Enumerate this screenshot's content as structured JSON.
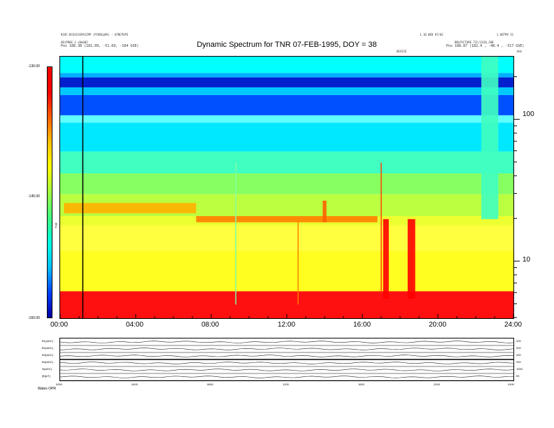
{
  "title": "Dynamic Spectrum for TNR 07-FEB-1995, DOY = 38",
  "header": {
    "left_line1": "B1DC-BCGSCGSPACCMP (PCKBC@PA) - 07NCPSPS",
    "left_line2": "AB|PR8E.3 sBe002",
    "left_line3": "Pos   188.38 (181.89, -51.69, -184 GSE)",
    "right_line1": "1.10 WED 07/02",
    "right_line2": "1.06TMV 31",
    "right_line3": "BBLPICTURE TIC/2X20,J0B",
    "right_line4": "Pos   188.87 (182.4 , -48.4 , -317 GSE)",
    "center_small": "DEVICE",
    "freq_unit": "kHz"
  },
  "chart_data": {
    "type": "heatmap",
    "title": "Dynamic Spectrum for TNR 07-FEB-1995, DOY = 38",
    "x_ticks": [
      "00:00",
      "04:00",
      "08:00",
      "12:00",
      "16:00",
      "20:00",
      "24:00"
    ],
    "x_range": [
      0,
      24
    ],
    "y_scale": "log",
    "y_ticks": [
      "100",
      "10"
    ],
    "y_range": [
      4,
      280
    ],
    "colorbar": {
      "ticks": [
        "-130.00",
        "-145.00",
        "-160.00"
      ],
      "range": [
        -160,
        -130
      ],
      "label": "TNR",
      "colors": [
        "#0000a0",
        "#0040ff",
        "#00c0ff",
        "#00ffe0",
        "#40ff80",
        "#a0ff40",
        "#ffff00",
        "#ffc000",
        "#ff6000",
        "#ff0000",
        "#ff0000"
      ]
    },
    "bands": [
      {
        "from": 4,
        "to": 6.2,
        "color": "#ff1010"
      },
      {
        "from": 6.2,
        "to": 12,
        "color": "#fffe20"
      },
      {
        "from": 12,
        "to": 18,
        "color": "#ffff40"
      },
      {
        "from": 18,
        "to": 21,
        "color": "#ecff30"
      },
      {
        "from": 21,
        "to": 30,
        "color": "#bcff40"
      },
      {
        "from": 30,
        "to": 42,
        "color": "#88ff60"
      },
      {
        "from": 42,
        "to": 60,
        "color": "#40ffc0"
      },
      {
        "from": 60,
        "to": 96,
        "color": "#00e8ff"
      },
      {
        "from": 96,
        "to": 108,
        "color": "#60ffff"
      },
      {
        "from": 108,
        "to": 150,
        "color": "#0050ff"
      },
      {
        "from": 150,
        "to": 170,
        "color": "#00c8ff"
      },
      {
        "from": 170,
        "to": 200,
        "color": "#0020d0"
      },
      {
        "from": 200,
        "to": 215,
        "color": "#00b0ff"
      },
      {
        "from": 215,
        "to": 280,
        "color": "#00ffff"
      }
    ],
    "features": [
      {
        "t0": 17.1,
        "t1": 17.4,
        "f0": 5.5,
        "f1": 20,
        "color": "#ff0000"
      },
      {
        "t0": 18.4,
        "t1": 18.8,
        "f0": 5.5,
        "f1": 20,
        "color": "#ff0000"
      },
      {
        "t0": 22.3,
        "t1": 23.2,
        "f0": 20,
        "f1": 280,
        "color": "#40ffc0"
      },
      {
        "t0": 0.2,
        "t1": 7.2,
        "f0": 22,
        "f1": 26,
        "color": "#ffb000"
      },
      {
        "t0": 7.2,
        "t1": 16.8,
        "f0": 19,
        "f1": 21,
        "color": "#ff8000"
      },
      {
        "t0": 13.9,
        "t1": 14.1,
        "f0": 19,
        "f1": 27,
        "color": "#ff6000"
      }
    ],
    "vertical_lines": [
      {
        "t": 1.2,
        "f0": 4,
        "f1": 280,
        "color": "#000000"
      },
      {
        "t": 12.6,
        "f0": 5,
        "f1": 20,
        "color": "#ff8000"
      },
      {
        "t": 9.3,
        "f0": 5,
        "f1": 50,
        "color": "#80ffa0"
      },
      {
        "t": 17.0,
        "f0": 6,
        "f1": 50,
        "color": "#ff4000"
      }
    ]
  },
  "panels": {
    "rows": [
      {
        "label": "B1(ADC)",
        "right": "200"
      },
      {
        "label": "B2(ADC)",
        "right": "200"
      },
      {
        "label": "B3(ADC)",
        "right": "200"
      },
      {
        "label": "B4(ADC)",
        "right": "200"
      },
      {
        "label": "N(ADC)",
        "right": "1000"
      },
      {
        "label": "|B|(nT)",
        "right": "50"
      }
    ],
    "x_ticks": [
      "0000",
      "0400",
      "0800",
      "1200",
      "1600",
      "2000",
      "2400"
    ],
    "footer": "Wales   OPR"
  }
}
